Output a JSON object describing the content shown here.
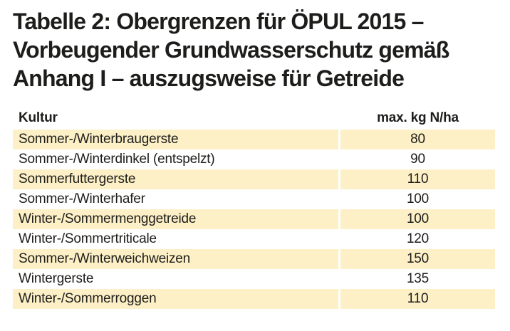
{
  "title": {
    "lines": [
      "Tabelle 2: Obergrenzen für ÖPUL 2015 –",
      "Vorbeugender Grundwasserschutz gemäß",
      "Anhang I – auszugsweise für Getreide"
    ]
  },
  "table": {
    "columns": {
      "kultur": "Kultur",
      "value": "max. kg N/ha"
    },
    "rows": [
      {
        "kultur": "Sommer-/Winterbraugerste",
        "value": "80"
      },
      {
        "kultur": "Sommer-/Winterdinkel (entspelzt)",
        "value": "90"
      },
      {
        "kultur": "Sommerfuttergerste",
        "value": "110"
      },
      {
        "kultur": "Sommer-/Winterhafer",
        "value": "100"
      },
      {
        "kultur": "Winter-/Sommermenggetreide",
        "value": "100"
      },
      {
        "kultur": "Winter-/Sommertriticale",
        "value": "120"
      },
      {
        "kultur": "Sommer-/Winterweichweizen",
        "value": "150"
      },
      {
        "kultur": "Wintergerste",
        "value": "135"
      },
      {
        "kultur": "Winter-/Sommerroggen",
        "value": "110"
      }
    ]
  },
  "colors": {
    "row_highlight": "#fdf0c6",
    "text": "#1d1d1b",
    "background": "#ffffff"
  }
}
